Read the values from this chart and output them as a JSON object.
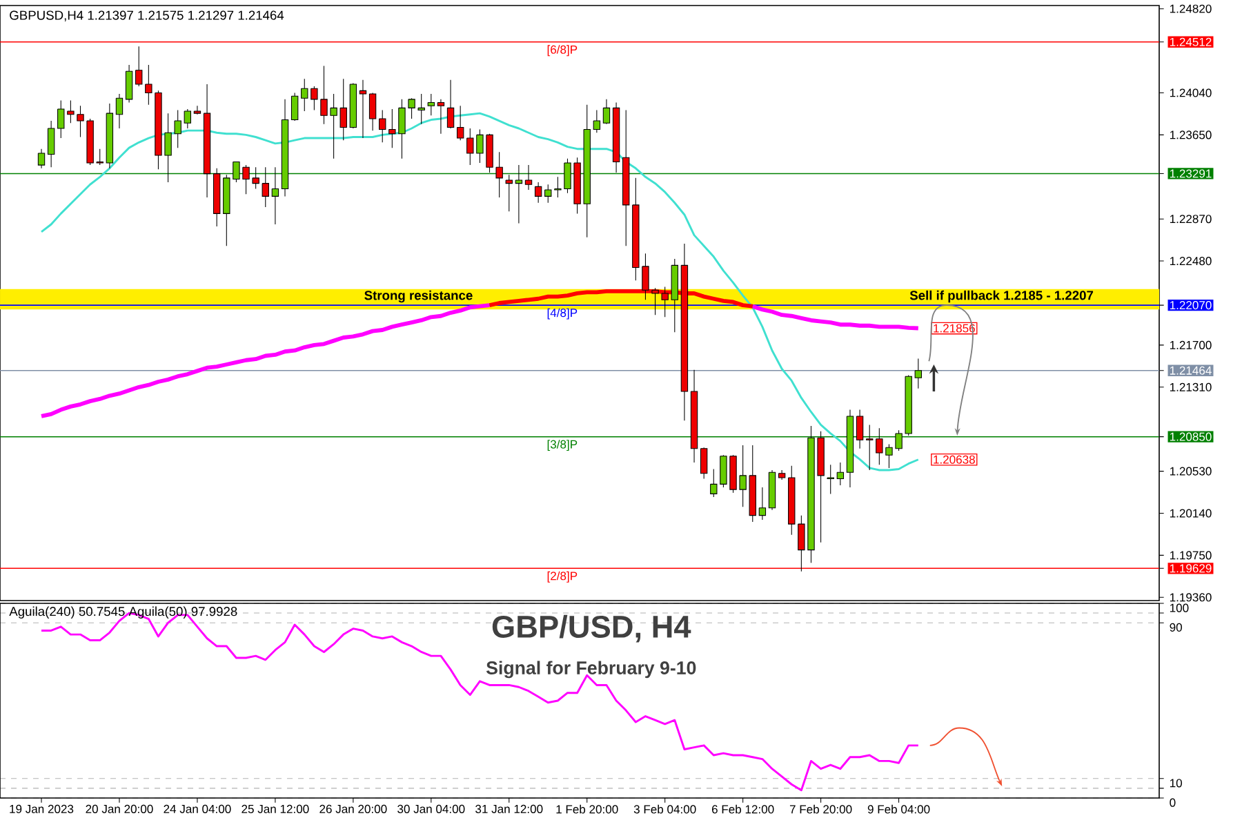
{
  "chart_data": [
    {
      "type": "candlestick",
      "annotations": [
        "GBPUSD,H4  1.21397 1.21575 1.21297 1.21464",
        "Sell if pullback 1.2185 -  1.2207"
      ],
      "categories": [
        null,
        null,
        null,
        null,
        null,
        null,
        null,
        null,
        null,
        null,
        null,
        null,
        null,
        null,
        null,
        null,
        null,
        null,
        null,
        null,
        null,
        null,
        null,
        null,
        null,
        null,
        null,
        null,
        null,
        null,
        null,
        null,
        null,
        null,
        null,
        null,
        null,
        null,
        null,
        null,
        null,
        null,
        null,
        null,
        null,
        null,
        null,
        null,
        null,
        null,
        null,
        null,
        null,
        null,
        null,
        null,
        null,
        null,
        null,
        null,
        null,
        null,
        null,
        null,
        null,
        null,
        null,
        null,
        null,
        null,
        null,
        null,
        null,
        null,
        null,
        null,
        null,
        null,
        null,
        null,
        null,
        null,
        null,
        null,
        null,
        null,
        null,
        null,
        null,
        null,
        null
      ],
      "ohlc": [
        [
          1.2337,
          1.2352,
          1.2334,
          1.2348
        ],
        [
          1.2347,
          1.2378,
          1.2335,
          1.2371
        ],
        [
          1.2371,
          1.2397,
          1.2362,
          1.2389
        ],
        [
          1.2387,
          1.2397,
          1.2376,
          1.2384
        ],
        [
          1.2384,
          1.2392,
          1.2363,
          1.2378
        ],
        [
          1.2378,
          1.238,
          1.2337,
          1.2339
        ],
        [
          1.234,
          1.2352,
          1.2337,
          1.2339
        ],
        [
          1.2339,
          1.2394,
          1.2334,
          1.2385
        ],
        [
          1.2384,
          1.2403,
          1.2371,
          1.2399
        ],
        [
          1.2398,
          1.243,
          1.2395,
          1.2424
        ],
        [
          1.2425,
          1.2447,
          1.241,
          1.2412
        ],
        [
          1.2412,
          1.243,
          1.2393,
          1.2404
        ],
        [
          1.2404,
          1.2406,
          1.2333,
          1.2346
        ],
        [
          1.2346,
          1.2385,
          1.2321,
          1.2367
        ],
        [
          1.2366,
          1.2388,
          1.2353,
          1.2378
        ],
        [
          1.2376,
          1.2389,
          1.2371,
          1.2387
        ],
        [
          1.2387,
          1.2392,
          1.2384,
          1.2385
        ],
        [
          1.2385,
          1.2412,
          1.2307,
          1.2329
        ],
        [
          1.2329,
          1.2334,
          1.228,
          1.2292
        ],
        [
          1.2292,
          1.2328,
          1.2262,
          1.2325
        ],
        [
          1.2324,
          1.234,
          1.2321,
          1.234
        ],
        [
          1.2335,
          1.2337,
          1.231,
          1.2324
        ],
        [
          1.2325,
          1.2335,
          1.2315,
          1.232
        ],
        [
          1.232,
          1.2335,
          1.2298,
          1.2308
        ],
        [
          1.2308,
          1.2335,
          1.2282,
          1.2315
        ],
        [
          1.2315,
          1.2398,
          1.2308,
          1.2379
        ],
        [
          1.2379,
          1.2404,
          1.2378,
          1.2401
        ],
        [
          1.2399,
          1.2417,
          1.2387,
          1.2408
        ],
        [
          1.2408,
          1.241,
          1.2388,
          1.2398
        ],
        [
          1.2398,
          1.2429,
          1.2375,
          1.2383
        ],
        [
          1.2383,
          1.2403,
          1.2343,
          1.239
        ],
        [
          1.239,
          1.2417,
          1.236,
          1.2372
        ],
        [
          1.2372,
          1.2413,
          1.2371,
          1.2412
        ],
        [
          1.2406,
          1.2416,
          1.2362,
          1.2403
        ],
        [
          1.2403,
          1.2404,
          1.2369,
          1.238
        ],
        [
          1.238,
          1.2388,
          1.2358,
          1.237
        ],
        [
          1.237,
          1.2389,
          1.2353,
          1.2366
        ],
        [
          1.2366,
          1.2398,
          1.2343,
          1.239
        ],
        [
          1.239,
          1.2399,
          1.238,
          1.2398
        ],
        [
          1.2388,
          1.2403,
          1.2375,
          1.239
        ],
        [
          1.2392,
          1.2403,
          1.2383,
          1.2395
        ],
        [
          1.2395,
          1.2398,
          1.2366,
          1.2392
        ],
        [
          1.239,
          1.2416,
          1.2371,
          1.2372
        ],
        [
          1.2372,
          1.2392,
          1.236,
          1.2362
        ],
        [
          1.2362,
          1.2371,
          1.2337,
          1.2348
        ],
        [
          1.2348,
          1.237,
          1.2339,
          1.2365
        ],
        [
          1.2365,
          1.2366,
          1.233,
          1.2335
        ],
        [
          1.2335,
          1.2349,
          1.2307,
          1.2325
        ],
        [
          1.2323,
          1.2328,
          1.2294,
          1.232
        ],
        [
          1.232,
          1.2337,
          1.2283,
          1.2323
        ],
        [
          1.2323,
          1.2337,
          1.2314,
          1.2319
        ],
        [
          1.2317,
          1.2321,
          1.2302,
          1.2308
        ],
        [
          1.2308,
          1.2319,
          1.2302,
          1.2314
        ],
        [
          1.2314,
          1.2326,
          1.2307,
          1.2315
        ],
        [
          1.2315,
          1.2343,
          1.2311,
          1.2339
        ],
        [
          1.2339,
          1.2344,
          1.2292,
          1.2301
        ],
        [
          1.2301,
          1.2393,
          1.227,
          1.237
        ],
        [
          1.237,
          1.2388,
          1.2367,
          1.2378
        ],
        [
          1.2376,
          1.2398,
          1.2375,
          1.239
        ],
        [
          1.239,
          1.2395,
          1.233,
          1.234
        ],
        [
          1.2344,
          1.2388,
          1.2262,
          1.23
        ],
        [
          1.23,
          1.2325,
          1.223,
          1.2242
        ],
        [
          1.2243,
          1.2255,
          1.2212,
          1.2221
        ],
        [
          1.2221,
          1.2223,
          1.2198,
          1.2218
        ],
        [
          1.2218,
          1.2224,
          1.2196,
          1.2212
        ],
        [
          1.2212,
          1.225,
          1.2182,
          1.2244
        ],
        [
          1.2244,
          1.2264,
          1.21,
          1.2127
        ],
        [
          1.2127,
          1.2147,
          1.2061,
          1.2074
        ],
        [
          1.2074,
          1.2075,
          1.2046,
          1.2051
        ],
        [
          1.2032,
          1.2055,
          1.2029,
          1.2041
        ],
        [
          1.2041,
          1.2068,
          1.2038,
          1.2067
        ],
        [
          1.2067,
          1.2068,
          1.2033,
          1.2036
        ],
        [
          1.2036,
          1.2077,
          1.202,
          1.2049
        ],
        [
          1.2049,
          1.2077,
          1.2006,
          1.2012
        ],
        [
          1.2012,
          1.2038,
          1.2008,
          1.2019
        ],
        [
          1.2019,
          1.2054,
          1.2017,
          1.2052
        ],
        [
          1.2051,
          1.2054,
          1.2045,
          1.2047
        ],
        [
          1.2047,
          1.2058,
          1.1994,
          1.2004
        ],
        [
          1.2004,
          1.2012,
          1.196,
          1.198
        ],
        [
          1.198,
          1.2095,
          1.1968,
          1.2084
        ],
        [
          1.2084,
          1.209,
          1.1987,
          1.2049
        ],
        [
          1.2046,
          1.2059,
          1.2032,
          1.2047
        ],
        [
          1.2046,
          1.2061,
          1.204,
          1.2052
        ],
        [
          1.2052,
          1.211,
          1.2038,
          1.2104
        ],
        [
          1.2104,
          1.211,
          1.2074,
          1.2082
        ],
        [
          1.2083,
          1.2096,
          1.2054,
          1.2082
        ],
        [
          1.2083,
          1.2093,
          1.2059,
          1.207
        ],
        [
          1.2068,
          1.2078,
          1.2056,
          1.2075
        ],
        [
          1.2074,
          1.2091,
          1.2072,
          1.2088
        ],
        [
          1.2088,
          1.2142,
          1.2086,
          1.2141
        ],
        [
          1.21397,
          1.21575,
          1.21297,
          1.21464
        ]
      ],
      "colors": [
        "#66cc00",
        "#66cc00",
        "#66cc00",
        "#ee0000",
        "#ee0000",
        "#ee0000",
        "#ee0000",
        "#66cc00",
        "#66cc00",
        "#66cc00",
        "#ee0000",
        "#ee0000",
        "#ee0000",
        "#66cc00",
        "#66cc00",
        "#66cc00",
        "#ee0000",
        "#ee0000",
        "#ee0000",
        "#66cc00",
        "#66cc00",
        "#ee0000",
        "#ee0000",
        "#ee0000",
        "#66cc00",
        "#66cc00",
        "#66cc00",
        "#66cc00",
        "#ee0000",
        "#ee0000",
        "#66cc00",
        "#ee0000",
        "#66cc00",
        "#ee0000",
        "#ee0000",
        "#ee0000",
        "#ee0000",
        "#66cc00",
        "#66cc00",
        "#66cc00",
        "#66cc00",
        "#ee0000",
        "#ee0000",
        "#ee0000",
        "#ee0000",
        "#66cc00",
        "#ee0000",
        "#ee0000",
        "#ee0000",
        "#66cc00",
        "#ee0000",
        "#ee0000",
        "#66cc00",
        "#66cc00",
        "#66cc00",
        "#ee0000",
        "#66cc00",
        "#66cc00",
        "#66cc00",
        "#ee0000",
        "#ee0000",
        "#ee0000",
        "#ee0000",
        "#ee0000",
        "#ee0000",
        "#66cc00",
        "#ee0000",
        "#ee0000",
        "#ee0000",
        "#66cc00",
        "#66cc00",
        "#ee0000",
        "#66cc00",
        "#ee0000",
        "#66cc00",
        "#66cc00",
        "#ee0000",
        "#ee0000",
        "#ee0000",
        "#66cc00",
        "#ee0000",
        "#66cc00",
        "#66cc00",
        "#66cc00",
        "#ee0000",
        "#ee0000",
        "#ee0000",
        "#66cc00",
        "#66cc00",
        "#66cc00",
        "#66cc00"
      ],
      "series": [
        {
          "type": "line",
          "color": "#40e0d0",
          "values": [
            1.2275,
            1.2282,
            1.2292,
            1.2301,
            1.231,
            1.2319,
            1.2326,
            1.2334,
            1.2344,
            1.2353,
            1.2358,
            1.2362,
            1.2365,
            1.2366,
            1.2367,
            1.2369,
            1.2369,
            1.2369,
            1.2367,
            1.2366,
            1.2366,
            1.2365,
            1.2363,
            1.236,
            1.2357,
            1.2358,
            1.236,
            1.2362,
            1.2362,
            1.2362,
            1.2362,
            1.2362,
            1.2363,
            1.2363,
            1.2363,
            1.2365,
            1.2366,
            1.2367,
            1.2371,
            1.2376,
            1.2379,
            1.238,
            1.2382,
            1.2383,
            1.2384,
            1.2385,
            1.2382,
            1.2378,
            1.2374,
            1.2371,
            1.2367,
            1.2363,
            1.2361,
            1.2358,
            1.2354,
            1.2352,
            1.2352,
            1.2352,
            1.2352,
            1.2349,
            1.234,
            1.2334,
            1.2326,
            1.232,
            1.2312,
            1.2302,
            1.2291,
            1.2272,
            1.2262,
            1.2252,
            1.2239,
            1.2228,
            1.2216,
            1.2205,
            1.2187,
            1.2165,
            1.2148,
            1.2137,
            1.2121,
            1.2108,
            1.2096,
            1.2088,
            1.2081,
            1.2071,
            1.2064,
            1.2056,
            1.2054,
            1.2054,
            1.2055,
            1.206,
            1.20638
          ],
          "value_labels": [
            null,
            null,
            null,
            null,
            null,
            null,
            null,
            null,
            null,
            null,
            null,
            null,
            null,
            null,
            null,
            null,
            null,
            null,
            null,
            null,
            null,
            null,
            null,
            null,
            null,
            null,
            null,
            null,
            null,
            null,
            null,
            null,
            null,
            null,
            null,
            null,
            null,
            null,
            null,
            null,
            null,
            null,
            null,
            null,
            null,
            null,
            null,
            null,
            null,
            null,
            null,
            null,
            null,
            null,
            null,
            null,
            null,
            null,
            null,
            null,
            null,
            null,
            null,
            null,
            null,
            null,
            null,
            null,
            null,
            null,
            null,
            null,
            null,
            null,
            null,
            null,
            null,
            null,
            null,
            null,
            null,
            null,
            null,
            null,
            null,
            null,
            null,
            null,
            null,
            null,
            "1.20638"
          ]
        },
        {
          "type": "line",
          "color": "#ff00ff",
          "values": [
            1.2104,
            1.2106,
            1.211,
            1.2113,
            1.2115,
            1.2118,
            1.212,
            1.2123,
            1.2125,
            1.2128,
            1.2131,
            1.2133,
            1.2136,
            1.2138,
            1.2141,
            1.2143,
            1.2146,
            1.2149,
            1.215,
            1.2152,
            1.2154,
            1.2156,
            1.2157,
            1.216,
            1.2161,
            1.2164,
            1.2165,
            1.2168,
            1.217,
            1.2171,
            1.2174,
            1.2177,
            1.2178,
            1.218,
            1.2183,
            1.2184,
            1.2187,
            1.2189,
            1.2191,
            1.2193,
            1.2196,
            1.2197,
            1.22,
            1.2202,
            1.2205,
            1.2206,
            1.2207,
            null,
            null,
            null,
            null,
            null,
            null,
            null,
            null,
            null,
            null,
            null,
            null,
            null,
            null,
            null,
            null,
            null,
            null,
            null,
            null,
            null,
            null,
            null,
            null,
            null,
            null,
            1.2206,
            1.2203,
            1.2201,
            1.2198,
            1.2197,
            1.2195,
            1.2193,
            1.2192,
            1.2191,
            1.2189,
            1.2189,
            1.2188,
            1.2188,
            1.2187,
            1.2187,
            1.2187,
            1.2186,
            1.21856
          ],
          "value_labels": [
            null,
            null,
            null,
            null,
            null,
            null,
            null,
            null,
            null,
            null,
            null,
            null,
            null,
            null,
            null,
            null,
            null,
            null,
            null,
            null,
            null,
            null,
            null,
            null,
            null,
            null,
            null,
            null,
            null,
            null,
            null,
            null,
            null,
            null,
            null,
            null,
            null,
            null,
            null,
            null,
            null,
            null,
            null,
            null,
            null,
            null,
            null,
            null,
            null,
            null,
            null,
            null,
            null,
            null,
            null,
            null,
            null,
            null,
            null,
            null,
            null,
            null,
            null,
            null,
            null,
            null,
            null,
            null,
            null,
            null,
            null,
            null,
            null,
            null,
            null,
            null,
            null,
            null,
            null,
            null,
            null,
            null,
            null,
            null,
            null,
            null,
            null,
            null,
            null,
            null,
            "1.21856"
          ]
        },
        {
          "type": "line",
          "color": "#ff0000",
          "values": [
            null,
            null,
            null,
            null,
            null,
            null,
            null,
            null,
            null,
            null,
            null,
            null,
            null,
            null,
            null,
            null,
            null,
            null,
            null,
            null,
            null,
            null,
            null,
            null,
            null,
            null,
            null,
            null,
            null,
            null,
            null,
            null,
            null,
            null,
            null,
            null,
            null,
            null,
            null,
            null,
            null,
            null,
            null,
            null,
            null,
            null,
            1.2207,
            1.2209,
            1.221,
            1.2211,
            1.2212,
            1.2213,
            1.2215,
            1.2215,
            1.2216,
            1.2218,
            1.2219,
            1.2219,
            1.222,
            1.222,
            1.222,
            1.222,
            1.222,
            1.222,
            1.2219,
            1.2219,
            1.2218,
            1.2218,
            1.2215,
            1.2213,
            1.2211,
            1.221,
            1.2207,
            1.2206,
            null,
            null,
            null,
            null,
            null,
            null,
            null,
            null,
            null,
            null,
            null,
            null,
            null,
            null,
            null,
            null,
            null
          ]
        }
      ],
      "ylim": [
        1.1933,
        1.2485
      ],
      "yticks": [
        {
          "value": 1.1936,
          "label": "1.19360"
        },
        {
          "value": 1.19629,
          "label": "1.19629"
        },
        {
          "value": 1.1975,
          "label": "1.19750"
        },
        {
          "value": 1.2014,
          "label": "1.20140"
        },
        {
          "value": 1.2053,
          "label": "1.20530"
        },
        {
          "value": 1.2085,
          "label": "1.20850"
        },
        {
          "value": 1.2131,
          "label": "1.21310"
        },
        {
          "value": 1.21464,
          "label": "1.21464"
        },
        {
          "value": 1.217,
          "label": "1.21700"
        },
        {
          "value": 1.2207,
          "label": "1.22070"
        },
        {
          "value": 1.2248,
          "label": "1.22480"
        },
        {
          "value": 1.2287,
          "label": "1.22870"
        },
        {
          "value": 1.23291,
          "label": "1.23291"
        },
        {
          "value": 1.2365,
          "label": "1.23650"
        },
        {
          "value": 1.2404,
          "label": "1.24040"
        },
        {
          "value": 1.24512,
          "label": "1.24512"
        },
        {
          "value": 1.2482,
          "label": "1.24820"
        }
      ],
      "ref_lines": [
        {
          "axis": "y",
          "value": 1.24512,
          "label": "[6/8]P",
          "color": "#ff0000"
        },
        {
          "axis": "y",
          "value": 1.23291,
          "color": "#008000"
        },
        {
          "axis": "y",
          "value": 1.2207,
          "label": "[4/8]P",
          "color": "#0000ff"
        },
        {
          "axis": "y",
          "value": 1.21464,
          "color": "#7f8fa6"
        },
        {
          "axis": "y",
          "value": 1.2085,
          "label": "[3/8]P",
          "color": "#008000"
        },
        {
          "axis": "y",
          "value": 1.19629,
          "label": "[2/8]P",
          "color": "#ff0000"
        }
      ],
      "bands": [
        {
          "axis": "y",
          "from": 1.2203,
          "to": 1.2222,
          "label": "Strong resistance",
          "color": "#ffee00"
        }
      ],
      "tick_labels": "y"
    },
    {
      "type": "line",
      "title": "GBP/USD, H4",
      "subtitle": "Signal for February 9-10",
      "annotations": [
        "Aguila(240) 50.7545  Aguila(50) 97.9928"
      ],
      "categories": [
        "19 Jan 2023",
        null,
        null,
        null,
        null,
        null,
        null,
        null,
        "20 Jan 20:00",
        null,
        null,
        null,
        null,
        null,
        null,
        null,
        "24 Jan 04:00",
        null,
        null,
        null,
        null,
        null,
        null,
        null,
        "25 Jan 12:00",
        null,
        null,
        null,
        null,
        null,
        null,
        null,
        "26 Jan 20:00",
        null,
        null,
        null,
        null,
        null,
        null,
        null,
        "30 Jan 04:00",
        null,
        null,
        null,
        null,
        null,
        null,
        null,
        "31 Jan 12:00",
        null,
        null,
        null,
        null,
        null,
        null,
        null,
        "1 Feb 20:00",
        null,
        null,
        null,
        null,
        null,
        null,
        null,
        "3 Feb 04:00",
        null,
        null,
        null,
        null,
        null,
        null,
        null,
        "6 Feb 12:00",
        null,
        null,
        null,
        null,
        null,
        null,
        null,
        "7 Feb 20:00",
        null,
        null,
        null,
        null,
        null,
        null,
        null,
        "9 Feb 04:00",
        null,
        null
      ],
      "series": [
        {
          "color": "#ff00ff",
          "values": [
            86,
            86,
            88,
            84,
            84,
            81,
            81,
            85,
            91,
            95,
            94,
            92,
            83,
            90,
            94,
            94,
            88,
            82,
            78,
            78,
            72,
            72,
            73,
            71,
            76,
            80,
            89,
            84,
            78,
            75,
            79,
            84,
            87,
            86,
            83,
            82,
            83,
            80,
            78,
            75,
            73,
            73,
            66,
            58,
            53,
            60,
            58,
            58,
            58,
            57,
            55,
            52,
            49,
            50,
            54,
            54,
            63,
            58,
            58,
            50,
            45,
            39,
            42,
            40,
            38,
            40,
            25,
            26,
            27,
            22,
            23,
            22,
            22,
            21,
            20,
            15,
            11,
            7,
            4,
            19,
            15,
            17,
            15,
            21,
            21,
            22,
            19,
            19,
            18,
            27,
            27
          ]
        }
      ],
      "ylim": [
        0,
        100
      ],
      "yticks": [
        0,
        {
          "value": 5,
          "label": null
        },
        10,
        90,
        {
          "value": 95,
          "label": null
        },
        100
      ],
      "grid": "y"
    }
  ]
}
